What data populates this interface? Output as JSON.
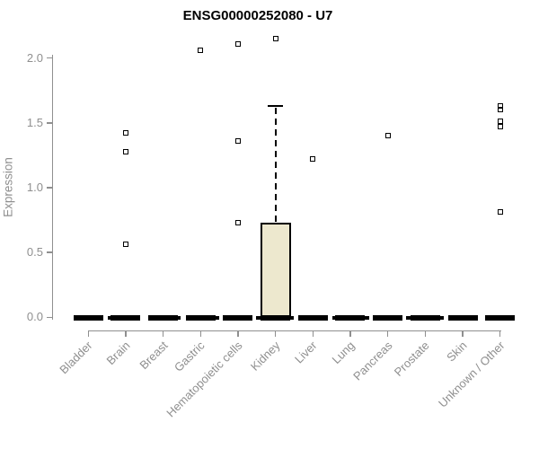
{
  "chart_data": {
    "type": "box",
    "title": "ENSG00000252080 - U7",
    "ylabel": "Expression",
    "xlabel": "",
    "ylim": [
      0,
      2.15
    ],
    "yticks": [
      0.0,
      0.5,
      1.0,
      1.5,
      2.0
    ],
    "ytick_labels": [
      "0.0",
      "0.5",
      "1.0",
      "1.5",
      "2.0"
    ],
    "grid": false,
    "legend": "none",
    "categories": [
      "Bladder",
      "Brain",
      "Breast",
      "Gastric",
      "Hematopoietic cells",
      "Kidney",
      "Liver",
      "Lung",
      "Pancreas",
      "Prostate",
      "Skin",
      "Unknown / Other"
    ],
    "boxes": [
      {
        "category": "Bladder",
        "whisker_low": 0,
        "q1": 0,
        "median": 0,
        "q3": 0,
        "whisker_high": 0,
        "outliers": []
      },
      {
        "category": "Brain",
        "whisker_low": 0,
        "q1": 0,
        "median": 0,
        "q3": 0,
        "whisker_high": 0,
        "outliers": [
          1.42,
          1.28,
          0.56
        ]
      },
      {
        "category": "Breast",
        "whisker_low": 0,
        "q1": 0,
        "median": 0,
        "q3": 0,
        "whisker_high": 0,
        "outliers": []
      },
      {
        "category": "Gastric",
        "whisker_low": 0,
        "q1": 0,
        "median": 0,
        "q3": 0,
        "whisker_high": 0,
        "outliers": [
          2.06
        ]
      },
      {
        "category": "Hematopoietic cells",
        "whisker_low": 0,
        "q1": 0,
        "median": 0,
        "q3": 0,
        "whisker_high": 0,
        "outliers": [
          2.11,
          1.36,
          0.73
        ]
      },
      {
        "category": "Kidney",
        "whisker_low": 0,
        "q1": 0,
        "median": 0,
        "q3": 0.73,
        "whisker_high": 1.63,
        "outliers": [
          2.15
        ]
      },
      {
        "category": "Liver",
        "whisker_low": 0,
        "q1": 0,
        "median": 0,
        "q3": 0,
        "whisker_high": 0,
        "outliers": [
          1.22
        ]
      },
      {
        "category": "Lung",
        "whisker_low": 0,
        "q1": 0,
        "median": 0,
        "q3": 0,
        "whisker_high": 0,
        "outliers": []
      },
      {
        "category": "Pancreas",
        "whisker_low": 0,
        "q1": 0,
        "median": 0,
        "q3": 0,
        "whisker_high": 0,
        "outliers": [
          1.4
        ]
      },
      {
        "category": "Prostate",
        "whisker_low": 0,
        "q1": 0,
        "median": 0,
        "q3": 0,
        "whisker_high": 0,
        "outliers": []
      },
      {
        "category": "Skin",
        "whisker_low": 0,
        "q1": 0,
        "median": 0,
        "q3": 0,
        "whisker_high": 0,
        "outliers": []
      },
      {
        "category": "Unknown / Other",
        "whisker_low": 0,
        "q1": 0,
        "median": 0,
        "q3": 0,
        "whisker_high": 0,
        "outliers": [
          1.63,
          1.6,
          1.51,
          1.47,
          0.81
        ]
      }
    ],
    "zero_line_nub_offsets": [
      3,
      -8,
      -3.5,
      -3,
      2,
      -3,
      3,
      -2,
      2,
      -3,
      -12
    ],
    "colors": {
      "box_fill": "#EDE8CE",
      "box_border": "#000000",
      "zero_bar": "#000000",
      "axis": "#8f8f8f",
      "axis_text": "#8f8f8f",
      "title_text": "#000000",
      "outlier": "#000000",
      "background": "#ffffff"
    }
  }
}
